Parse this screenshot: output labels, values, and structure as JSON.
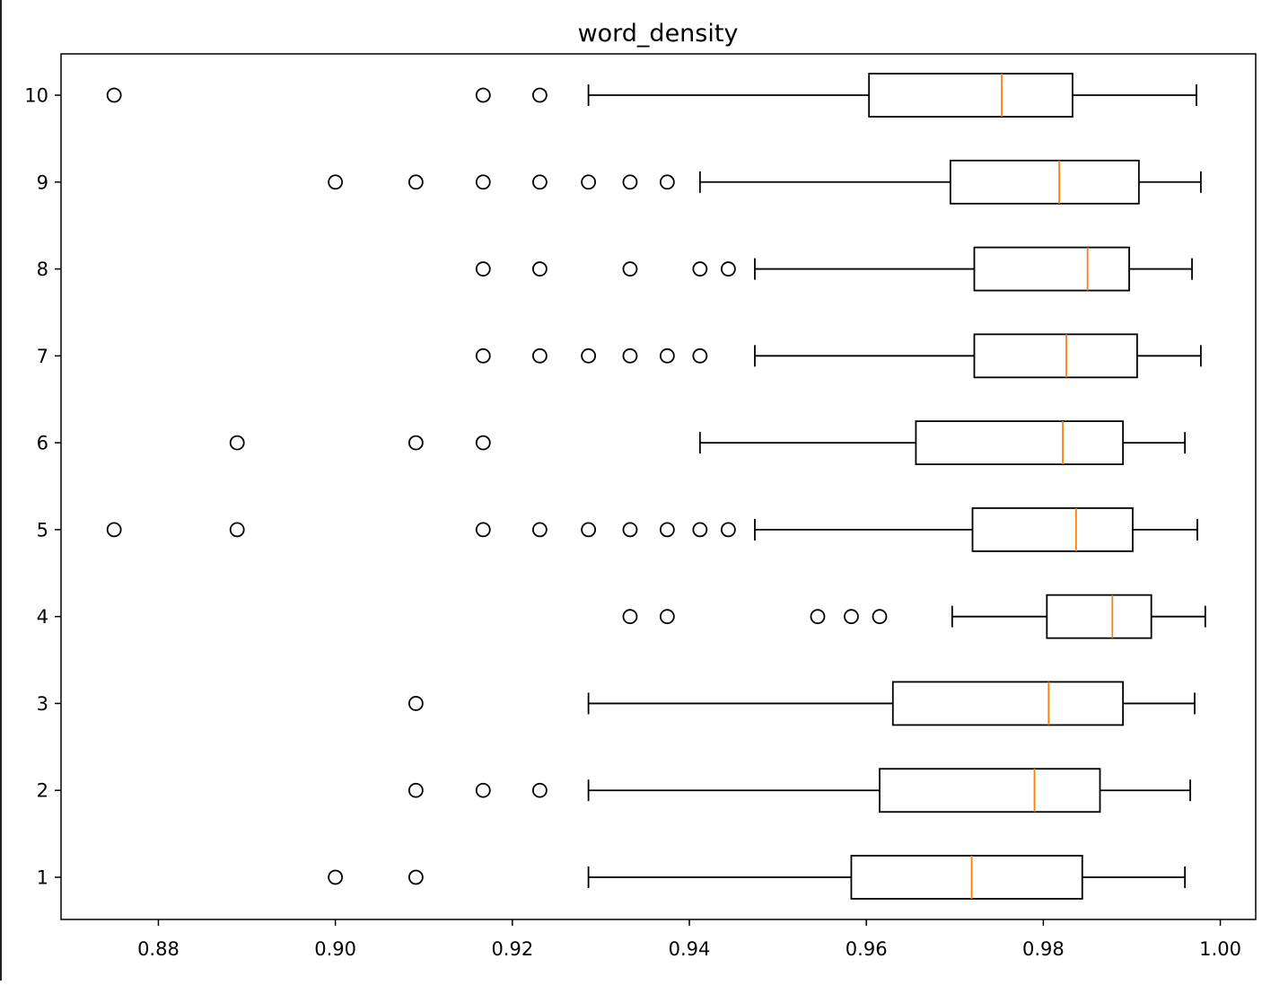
{
  "chart_data": {
    "type": "boxplot",
    "orientation": "horizontal",
    "title": "word_density",
    "xlabel": "",
    "ylabel": "",
    "xlim": [
      0.869,
      1.004
    ],
    "xticks": [
      "0.88",
      "0.90",
      "0.92",
      "0.94",
      "0.96",
      "0.98",
      "1.00"
    ],
    "xtick_values": [
      0.88,
      0.9,
      0.92,
      0.94,
      0.96,
      0.98,
      1.0
    ],
    "categories": [
      "1",
      "2",
      "3",
      "4",
      "5",
      "6",
      "7",
      "8",
      "9",
      "10"
    ],
    "grid": false,
    "colors": {
      "box": "#000000",
      "median": "#ff7f0e",
      "outlier": "#000000"
    },
    "boxes": [
      {
        "label": "1",
        "whislo": 0.9286,
        "q1": 0.9583,
        "med": 0.9719,
        "q3": 0.9844,
        "whishi": 0.996,
        "fliers": [
          0.9,
          0.9091
        ]
      },
      {
        "label": "2",
        "whislo": 0.9286,
        "q1": 0.9615,
        "med": 0.979,
        "q3": 0.9864,
        "whishi": 0.9966,
        "fliers": [
          0.9091,
          0.9167,
          0.9231
        ]
      },
      {
        "label": "3",
        "whislo": 0.9286,
        "q1": 0.963,
        "med": 0.9806,
        "q3": 0.989,
        "whishi": 0.9971,
        "fliers": [
          0.9091
        ]
      },
      {
        "label": "4",
        "whislo": 0.9697,
        "q1": 0.9804,
        "med": 0.9878,
        "q3": 0.9922,
        "whishi": 0.9983,
        "fliers": [
          0.9333,
          0.9375,
          0.9545,
          0.9583,
          0.9615
        ]
      },
      {
        "label": "5",
        "whislo": 0.9474,
        "q1": 0.972,
        "med": 0.9837,
        "q3": 0.9901,
        "whishi": 0.9974,
        "fliers": [
          0.875,
          0.8889,
          0.9167,
          0.9231,
          0.9286,
          0.9333,
          0.9375,
          0.9412,
          0.9444
        ]
      },
      {
        "label": "6",
        "whislo": 0.9412,
        "q1": 0.9656,
        "med": 0.9822,
        "q3": 0.989,
        "whishi": 0.996,
        "fliers": [
          0.8889,
          0.9091,
          0.9167
        ]
      },
      {
        "label": "7",
        "whislo": 0.9474,
        "q1": 0.9722,
        "med": 0.9826,
        "q3": 0.9906,
        "whishi": 0.9978,
        "fliers": [
          0.9167,
          0.9231,
          0.9286,
          0.9333,
          0.9375,
          0.9412
        ]
      },
      {
        "label": "8",
        "whislo": 0.9474,
        "q1": 0.9722,
        "med": 0.985,
        "q3": 0.9897,
        "whishi": 0.9968,
        "fliers": [
          0.9167,
          0.9231,
          0.9333,
          0.9412,
          0.9444
        ]
      },
      {
        "label": "9",
        "whislo": 0.9412,
        "q1": 0.9695,
        "med": 0.9818,
        "q3": 0.9908,
        "whishi": 0.9978,
        "fliers": [
          0.9,
          0.9091,
          0.9167,
          0.9231,
          0.9286,
          0.9333,
          0.9375
        ]
      },
      {
        "label": "10",
        "whislo": 0.9286,
        "q1": 0.9603,
        "med": 0.9753,
        "q3": 0.9833,
        "whishi": 0.9973,
        "fliers": [
          0.875,
          0.9167,
          0.9231
        ]
      }
    ]
  }
}
